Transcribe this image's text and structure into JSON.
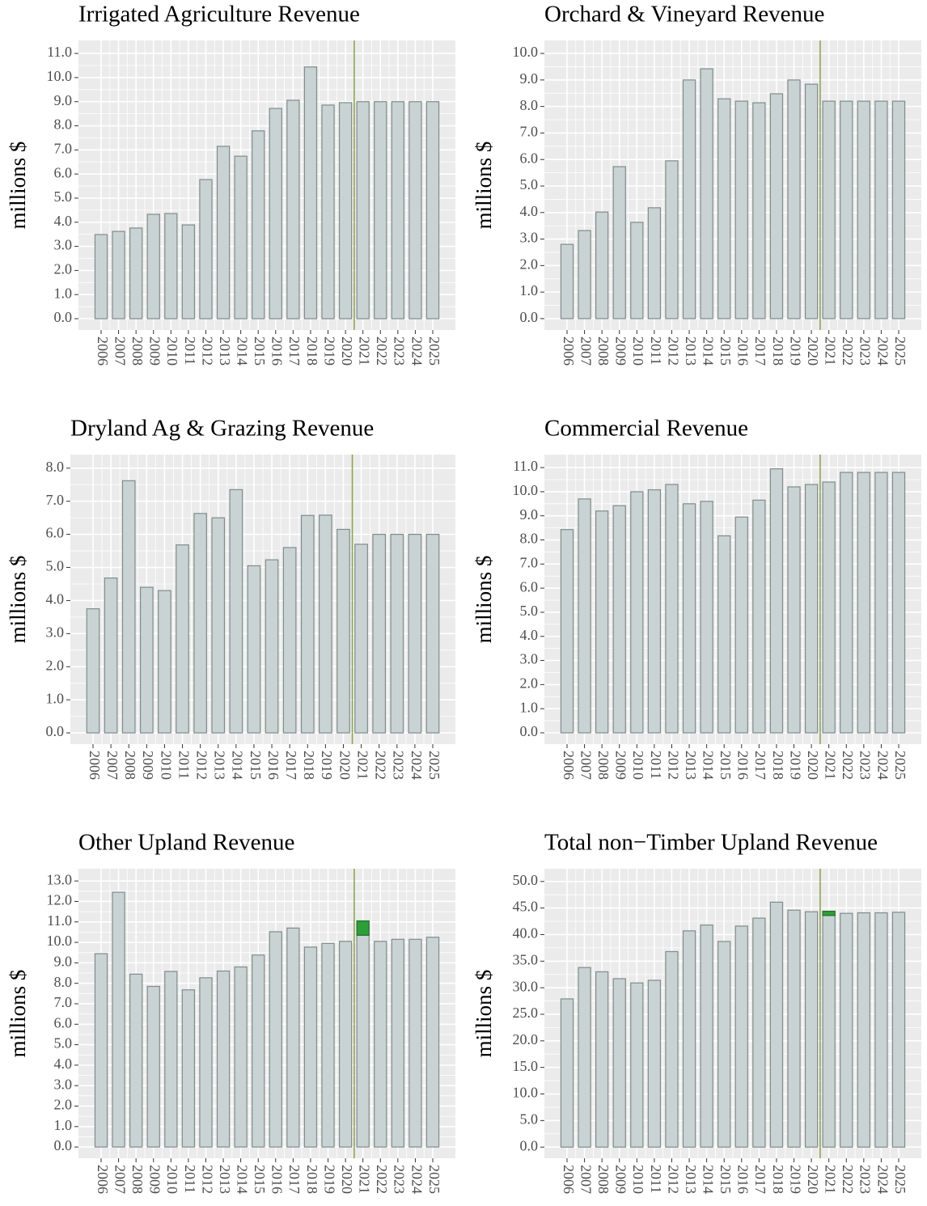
{
  "chart_data": [
    {
      "type": "bar",
      "title": "Irrigated Agriculture Revenue",
      "ylabel": "millions $",
      "categories": [
        "2006",
        "2007",
        "2008",
        "2009",
        "2010",
        "2011",
        "2012",
        "2013",
        "2014",
        "2015",
        "2016",
        "2017",
        "2018",
        "2019",
        "2020",
        "2021",
        "2022",
        "2023",
        "2024",
        "2025"
      ],
      "series": [
        {
          "color": "#c9d3d3",
          "edgecolor": "#7f8c8a",
          "values": [
            3.49,
            3.62,
            3.76,
            4.33,
            4.36,
            3.89,
            5.77,
            7.15,
            6.74,
            7.79,
            8.72,
            9.06,
            10.44,
            8.86,
            8.96,
            9.0,
            9.0,
            9.0,
            9.0,
            9.0
          ]
        }
      ],
      "ylim": [
        -0.47,
        11.54
      ],
      "yticks": [
        {
          "value": 0,
          "label": "0.0"
        },
        {
          "value": 1,
          "label": "1.0"
        },
        {
          "value": 2,
          "label": "2.0"
        },
        {
          "value": 3,
          "label": "3.0"
        },
        {
          "value": 4,
          "label": "4.0"
        },
        {
          "value": 5,
          "label": "5.0"
        },
        {
          "value": 6,
          "label": "6.0"
        },
        {
          "value": 7,
          "label": "7.0"
        },
        {
          "value": 8,
          "label": "8.0"
        },
        {
          "value": 9,
          "label": "9.0"
        },
        {
          "value": 10,
          "label": "10.0"
        },
        {
          "value": 11,
          "label": "11.0"
        }
      ],
      "grid": true
    },
    {
      "type": "bar",
      "title": "Orchard & Vineyard Revenue",
      "ylabel": "millions $",
      "categories": [
        "2006",
        "2007",
        "2008",
        "2009",
        "2010",
        "2011",
        "2012",
        "2013",
        "2014",
        "2015",
        "2016",
        "2017",
        "2018",
        "2019",
        "2020",
        "2021",
        "2022",
        "2023",
        "2024",
        "2025"
      ],
      "series": [
        {
          "color": "#c9d3d3",
          "edgecolor": "#7f8c8a",
          "values": [
            2.8,
            3.32,
            4.02,
            5.73,
            3.63,
            4.18,
            5.95,
            9.0,
            9.42,
            8.29,
            8.2,
            8.14,
            8.48,
            9.0,
            8.84,
            8.2,
            8.2,
            8.2,
            8.2,
            8.2
          ]
        }
      ],
      "ylim": [
        -0.43,
        10.49
      ],
      "yticks": [
        {
          "value": 0,
          "label": "0.0"
        },
        {
          "value": 1,
          "label": "1.0"
        },
        {
          "value": 2,
          "label": "2.0"
        },
        {
          "value": 3,
          "label": "3.0"
        },
        {
          "value": 4,
          "label": "4.0"
        },
        {
          "value": 5,
          "label": "5.0"
        },
        {
          "value": 6,
          "label": "6.0"
        },
        {
          "value": 7,
          "label": "7.0"
        },
        {
          "value": 8,
          "label": "8.0"
        },
        {
          "value": 9,
          "label": "9.0"
        },
        {
          "value": 10,
          "label": "10.0"
        }
      ],
      "grid": true
    },
    {
      "type": "bar",
      "title": "Dryland Ag & Grazing Revenue",
      "ylabel": "millions $",
      "categories": [
        "2006",
        "2007",
        "2008",
        "2009",
        "2010",
        "2011",
        "2012",
        "2013",
        "2014",
        "2015",
        "2016",
        "2017",
        "2018",
        "2019",
        "2020",
        "2021",
        "2022",
        "2023",
        "2024",
        "2025"
      ],
      "series": [
        {
          "color": "#c9d3d3",
          "edgecolor": "#7f8c8a",
          "values": [
            3.75,
            4.68,
            7.62,
            4.4,
            4.3,
            5.68,
            6.63,
            6.5,
            7.35,
            5.05,
            5.23,
            5.6,
            6.57,
            6.58,
            6.15,
            5.7,
            6.0,
            6.0,
            6.0,
            6.0
          ]
        }
      ],
      "ylim": [
        -0.34,
        8.41
      ],
      "yticks": [
        {
          "value": 0,
          "label": "0.0"
        },
        {
          "value": 1,
          "label": "1.0"
        },
        {
          "value": 2,
          "label": "2.0"
        },
        {
          "value": 3,
          "label": "3.0"
        },
        {
          "value": 4,
          "label": "4.0"
        },
        {
          "value": 5,
          "label": "5.0"
        },
        {
          "value": 6,
          "label": "6.0"
        },
        {
          "value": 7,
          "label": "7.0"
        },
        {
          "value": 8,
          "label": "8.0"
        }
      ],
      "grid": true
    },
    {
      "type": "bar",
      "title": "Commercial Revenue",
      "ylabel": "millions $",
      "categories": [
        "2006",
        "2007",
        "2008",
        "2009",
        "2010",
        "2011",
        "2012",
        "2013",
        "2014",
        "2015",
        "2016",
        "2017",
        "2018",
        "2019",
        "2020",
        "2021",
        "2022",
        "2023",
        "2024",
        "2025"
      ],
      "series": [
        {
          "color": "#c9d3d3",
          "edgecolor": "#7f8c8a",
          "values": [
            8.43,
            9.7,
            9.2,
            9.42,
            10.0,
            10.08,
            10.3,
            9.5,
            9.6,
            8.17,
            8.95,
            9.65,
            10.95,
            10.2,
            10.3,
            10.4,
            10.8,
            10.8,
            10.8,
            10.8
          ]
        }
      ],
      "ylim": [
        -0.47,
        11.54
      ],
      "yticks": [
        {
          "value": 0,
          "label": "0.0"
        },
        {
          "value": 1,
          "label": "1.0"
        },
        {
          "value": 2,
          "label": "2.0"
        },
        {
          "value": 3,
          "label": "3.0"
        },
        {
          "value": 4,
          "label": "4.0"
        },
        {
          "value": 5,
          "label": "5.0"
        },
        {
          "value": 6,
          "label": "6.0"
        },
        {
          "value": 7,
          "label": "7.0"
        },
        {
          "value": 8,
          "label": "8.0"
        },
        {
          "value": 9,
          "label": "9.0"
        },
        {
          "value": 10,
          "label": "10.0"
        },
        {
          "value": 11,
          "label": "11.0"
        }
      ],
      "grid": true
    },
    {
      "type": "bar",
      "title": "Other Upland Revenue",
      "ylabel": "millions $",
      "categories": [
        "2006",
        "2007",
        "2008",
        "2009",
        "2010",
        "2011",
        "2012",
        "2013",
        "2014",
        "2015",
        "2016",
        "2017",
        "2018",
        "2019",
        "2020",
        "2021",
        "2022",
        "2023",
        "2024",
        "2025"
      ],
      "series": [
        {
          "color": "#c9d3d3",
          "edgecolor": "#7f8c8a",
          "values": [
            9.45,
            12.45,
            8.45,
            7.85,
            8.58,
            7.68,
            8.27,
            8.6,
            8.8,
            9.38,
            10.52,
            10.7,
            9.77,
            9.95,
            10.05,
            10.35,
            10.05,
            10.15,
            10.15,
            10.25
          ]
        },
        {
          "color": "#2e9e3a",
          "edgecolor": "#1f6e2a",
          "values": [
            null,
            null,
            null,
            null,
            null,
            null,
            null,
            null,
            null,
            null,
            null,
            null,
            null,
            null,
            null,
            0.7,
            null,
            null,
            null,
            null
          ]
        }
      ],
      "ylim": [
        -0.55,
        13.6
      ],
      "yticks": [
        {
          "value": 0,
          "label": "0.0"
        },
        {
          "value": 1,
          "label": "1.0"
        },
        {
          "value": 2,
          "label": "2.0"
        },
        {
          "value": 3,
          "label": "3.0"
        },
        {
          "value": 4,
          "label": "4.0"
        },
        {
          "value": 5,
          "label": "5.0"
        },
        {
          "value": 6,
          "label": "6.0"
        },
        {
          "value": 7,
          "label": "7.0"
        },
        {
          "value": 8,
          "label": "8.0"
        },
        {
          "value": 9,
          "label": "9.0"
        },
        {
          "value": 10,
          "label": "10.0"
        },
        {
          "value": 11,
          "label": "11.0"
        },
        {
          "value": 12,
          "label": "12.0"
        },
        {
          "value": 13,
          "label": "13.0"
        }
      ],
      "grid": true
    },
    {
      "type": "bar",
      "title": "Total non−Timber Upland Revenue",
      "ylabel": "millions $",
      "categories": [
        "2006",
        "2007",
        "2008",
        "2009",
        "2010",
        "2011",
        "2012",
        "2013",
        "2014",
        "2015",
        "2016",
        "2017",
        "2018",
        "2019",
        "2020",
        "2021",
        "2022",
        "2023",
        "2024",
        "2025"
      ],
      "series": [
        {
          "color": "#c9d3d3",
          "edgecolor": "#7f8c8a",
          "values": [
            27.9,
            33.8,
            33.0,
            31.7,
            30.9,
            31.4,
            36.8,
            40.7,
            41.8,
            38.7,
            41.6,
            43.1,
            46.1,
            44.6,
            44.3,
            43.6,
            44.0,
            44.1,
            44.1,
            44.2
          ]
        },
        {
          "color": "#2e9e3a",
          "edgecolor": "#1f6e2a",
          "values": [
            null,
            null,
            null,
            null,
            null,
            null,
            null,
            null,
            null,
            null,
            null,
            null,
            null,
            null,
            null,
            0.8,
            null,
            null,
            null,
            null
          ]
        }
      ],
      "ylim": [
        -2.1,
        52.4
      ],
      "yticks": [
        {
          "value": 0,
          "label": "0.0"
        },
        {
          "value": 5,
          "label": "5.0"
        },
        {
          "value": 10,
          "label": "10.0"
        },
        {
          "value": 15,
          "label": "15.0"
        },
        {
          "value": 20,
          "label": "20.0"
        },
        {
          "value": 25,
          "label": "25.0"
        },
        {
          "value": 30,
          "label": "30.0"
        },
        {
          "value": 35,
          "label": "35.0"
        },
        {
          "value": 40,
          "label": "40.0"
        },
        {
          "value": 45,
          "label": "45.0"
        },
        {
          "value": 50,
          "label": "50.0"
        }
      ],
      "grid": true
    }
  ]
}
